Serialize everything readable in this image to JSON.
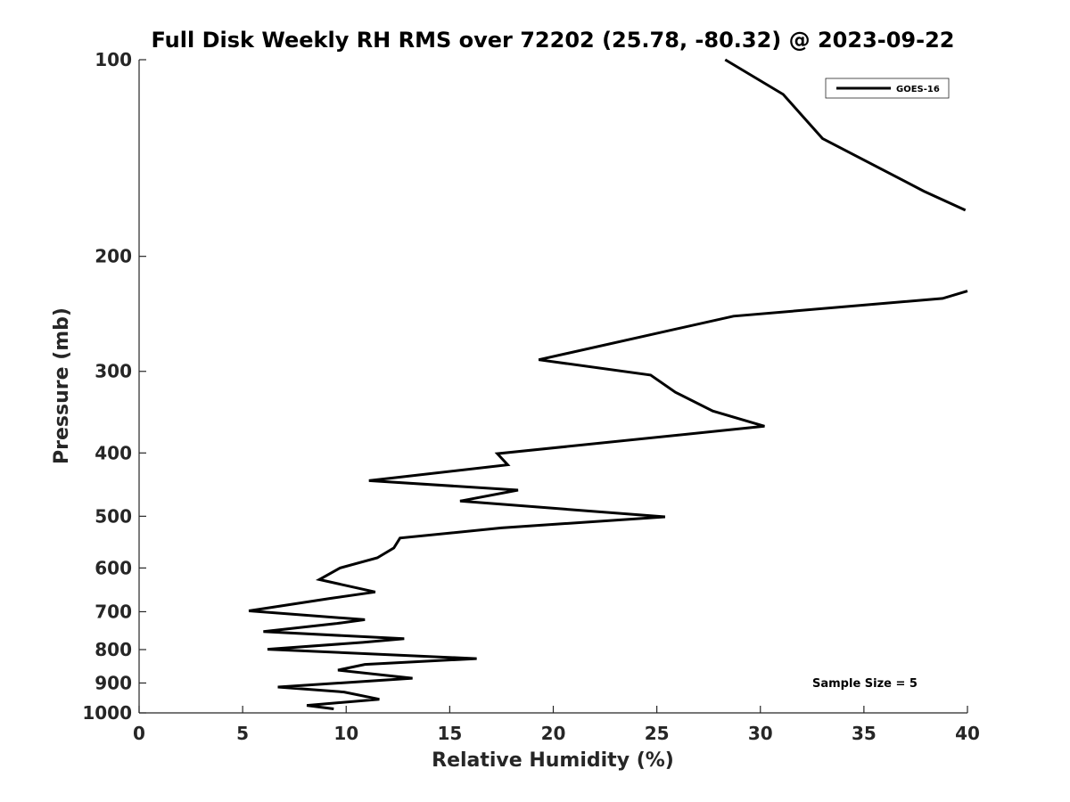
{
  "chart_data": {
    "type": "line",
    "title": "Full Disk Weekly RH RMS over 72202 (25.78, -80.32) @ 2023-09-22",
    "xlabel": "Relative Humidity (%)",
    "ylabel": "Pressure (mb)",
    "xlim": [
      0,
      40
    ],
    "ylim": [
      100,
      1000
    ],
    "yscale": "log",
    "y_reversed": true,
    "grid": false,
    "xticks": [
      0,
      5,
      10,
      15,
      20,
      25,
      30,
      35,
      40
    ],
    "yticks": [
      100,
      200,
      300,
      400,
      500,
      600,
      700,
      800,
      900,
      1000
    ],
    "legend_position": "top-right",
    "annotation": "Sample Size = 5",
    "series": [
      {
        "name": "GOES-16",
        "color": "#000000",
        "x": [
          28.3,
          31.1,
          33.0,
          37.9,
          39.9,
          null,
          40.0,
          38.8,
          28.7,
          19.3,
          24.7,
          25.9,
          27.7,
          30.2,
          17.3,
          17.8,
          11.1,
          18.3,
          15.5,
          25.4,
          17.5,
          12.6,
          12.3,
          11.5,
          9.7,
          8.7,
          11.4,
          9.2,
          5.3,
          10.9,
          9.5,
          6.0,
          12.8,
          10.8,
          6.2,
          16.3,
          10.9,
          9.6,
          13.2,
          6.7,
          9.9,
          11.6,
          8.1,
          9.4
        ],
        "y": [
          100,
          113,
          132,
          159,
          170,
          null,
          226,
          232,
          247,
          288,
          304,
          323,
          345,
          364,
          401,
          417,
          441,
          456,
          474,
          501,
          521,
          540,
          559,
          579,
          600,
          625,
          653,
          668,
          698,
          720,
          730,
          751,
          770,
          780,
          799,
          826,
          843,
          860,
          885,
          913,
          929,
          953,
          974,
          986
        ]
      }
    ]
  }
}
